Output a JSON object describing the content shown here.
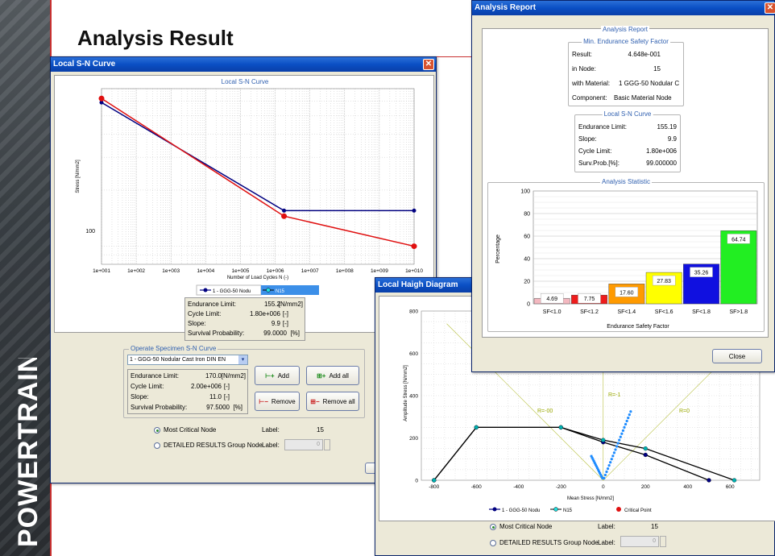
{
  "slide": {
    "title": "Analysis Result",
    "side_word": "POWERTRAIN"
  },
  "sn_window": {
    "title": "Local S-N Curve",
    "chart_title": "Local S-N Curve",
    "ylabel": "Stress [N/mm2]",
    "xlabel": "Number of Load Cycles N (-)",
    "y_tick": "100",
    "legend": {
      "material": "1 - GGG-50 Nodu",
      "node": "N15"
    },
    "info": {
      "endurance_label": "Endurance Limit:",
      "endurance_value": "155.2",
      "endurance_unit": "[N/mm2]",
      "cycle_label": "Cycle Limit:",
      "cycle_value": "1.80e+006",
      "cycle_unit": "[-]",
      "slope_label": "Slope:",
      "slope_value": "9.9",
      "slope_unit": "[-]",
      "surv_label": "Survival Probability:",
      "surv_value": "99.0000",
      "surv_unit": "[%]"
    },
    "operate": {
      "title": "Operate Specimen S-N Curve",
      "select_value": "1 - GGG-50 Nodular Cast Iron DIN EN",
      "endurance_label": "Endurance Limit:",
      "endurance_value": "170.0",
      "endurance_unit": "[N/mm2]",
      "cycle_label": "Cycle Limit:",
      "cycle_value": "2.00e+006",
      "cycle_unit": "[-]",
      "slope_label": "Slope:",
      "slope_value": "11.0",
      "slope_unit": "[-]",
      "surv_label": "Survival Probability:",
      "surv_value": "97.5000",
      "surv_unit": "[%]",
      "add": "Add",
      "add_all": "Add all",
      "remove": "Remove",
      "remove_all": "Remove all"
    },
    "most_critical": "Most Critical Node",
    "detailed": "DETAILED RESULTS Group Node",
    "label_text": "Label:",
    "label_value": "15",
    "label_input": "0"
  },
  "haigh_window": {
    "title": "Local Haigh Diagram",
    "ylabel": "Amplitude Stress [N/mm2]",
    "xlabel": "Mean Stress [N/mm2]",
    "ratios": {
      "r0": "R=0",
      "r1": "R=-1",
      "rinf": "R=-00"
    },
    "legend": {
      "material": "1 - GGG-50 Nodu",
      "node": "N15",
      "critical": "Critical Point"
    },
    "most_critical": "Most Critical Node",
    "detailed": "DETAILED RESULTS Group Node",
    "label_text": "Label:",
    "label_value": "15",
    "label_input": "0"
  },
  "report_window": {
    "title": "Analysis Report",
    "heading": "Analysis Report",
    "min_sf": {
      "title": "Min. Endurance Safety Factor",
      "result_label": "Result:",
      "result_value": "4.648e-001",
      "node_label": "in Node:",
      "node_value": "15",
      "material_label": "with Material:",
      "material_value": "1 GGG-50 Nodular C",
      "component_label": "Component:",
      "component_value": "Basic Material Node"
    },
    "local_sn": {
      "title": "Local S-N Curve",
      "endurance_label": "Endurance Limit:",
      "endurance_value": "155.19",
      "slope_label": "Slope:",
      "slope_value": "9.9",
      "cycle_label": "Cycle Limit:",
      "cycle_value": "1.80e+006",
      "surv_label": "Surv.Prob.[%]:",
      "surv_value": "99.000000"
    },
    "close": "Close"
  },
  "chart_data": [
    {
      "type": "bar",
      "title": "Analysis Statistic",
      "xlabel": "Endurance Safety Factor",
      "ylabel": "Percentage",
      "ylim": [
        0,
        100
      ],
      "categories": [
        "SF<1.0",
        "SF<1.2",
        "SF<1.4",
        "SF<1.6",
        "SF<1.8",
        "SF>1.8"
      ],
      "values": [
        4.69,
        7.75,
        17.6,
        27.83,
        35.26,
        64.74
      ],
      "bar_values": [
        4.69,
        7.75,
        17.6,
        27.83,
        35.26,
        64.74
      ],
      "data_labels": [
        "4.69",
        "7.75",
        "17.60",
        "27.83",
        "35.26",
        "64.74"
      ],
      "colors": [
        "#f4b8c0",
        "#ee1c1c",
        "#ff9a00",
        "#ffff00",
        "#1010e0",
        "#22ee22"
      ],
      "y_ticks": [
        0,
        20,
        40,
        60,
        80,
        100
      ],
      "grid": true
    },
    {
      "type": "line",
      "title": "Local S-N Curve",
      "xlabel": "Number of Load Cycles N (-)",
      "ylabel": "Stress [N/mm2]",
      "x_scale": "log",
      "y_scale": "log",
      "x_ticks": [
        "1e+001",
        "1e+002",
        "1e+003",
        "1e+004",
        "1e+005",
        "1e+006",
        "1e+007",
        "1e+008",
        "1e+009",
        "1e+010"
      ],
      "series": [
        {
          "name": "1 - GGG-50 Nodu",
          "color": "#000080",
          "x": [
            10,
            1800000,
            10000000000
          ],
          "y": [
            590,
            155.2,
            155.2
          ]
        },
        {
          "name": "N15",
          "color": "#e01010",
          "x": [
            10,
            1800000,
            10000000000
          ],
          "y": [
            620,
            145,
            100
          ]
        }
      ]
    },
    {
      "type": "line",
      "title": "Local Haigh Diagram",
      "xlabel": "Mean Stress [N/mm2]",
      "ylabel": "Amplitude Stress [N/mm2]",
      "x_ticks": [
        -800,
        -600,
        -400,
        -200,
        0,
        200,
        400,
        600
      ],
      "y_ticks": [
        0,
        200,
        400,
        600,
        800
      ],
      "series": [
        {
          "name": "1 - GGG-50 Nodu",
          "color": "#000080",
          "x": [
            -800,
            -600,
            -200,
            0,
            200,
            500
          ],
          "y": [
            0,
            250,
            250,
            180,
            120,
            0
          ]
        },
        {
          "name": "N15",
          "color": "#00b0b0",
          "x": [
            -800,
            -600,
            -200,
            0,
            200,
            620
          ],
          "y": [
            0,
            250,
            250,
            190,
            150,
            0
          ]
        }
      ]
    }
  ]
}
